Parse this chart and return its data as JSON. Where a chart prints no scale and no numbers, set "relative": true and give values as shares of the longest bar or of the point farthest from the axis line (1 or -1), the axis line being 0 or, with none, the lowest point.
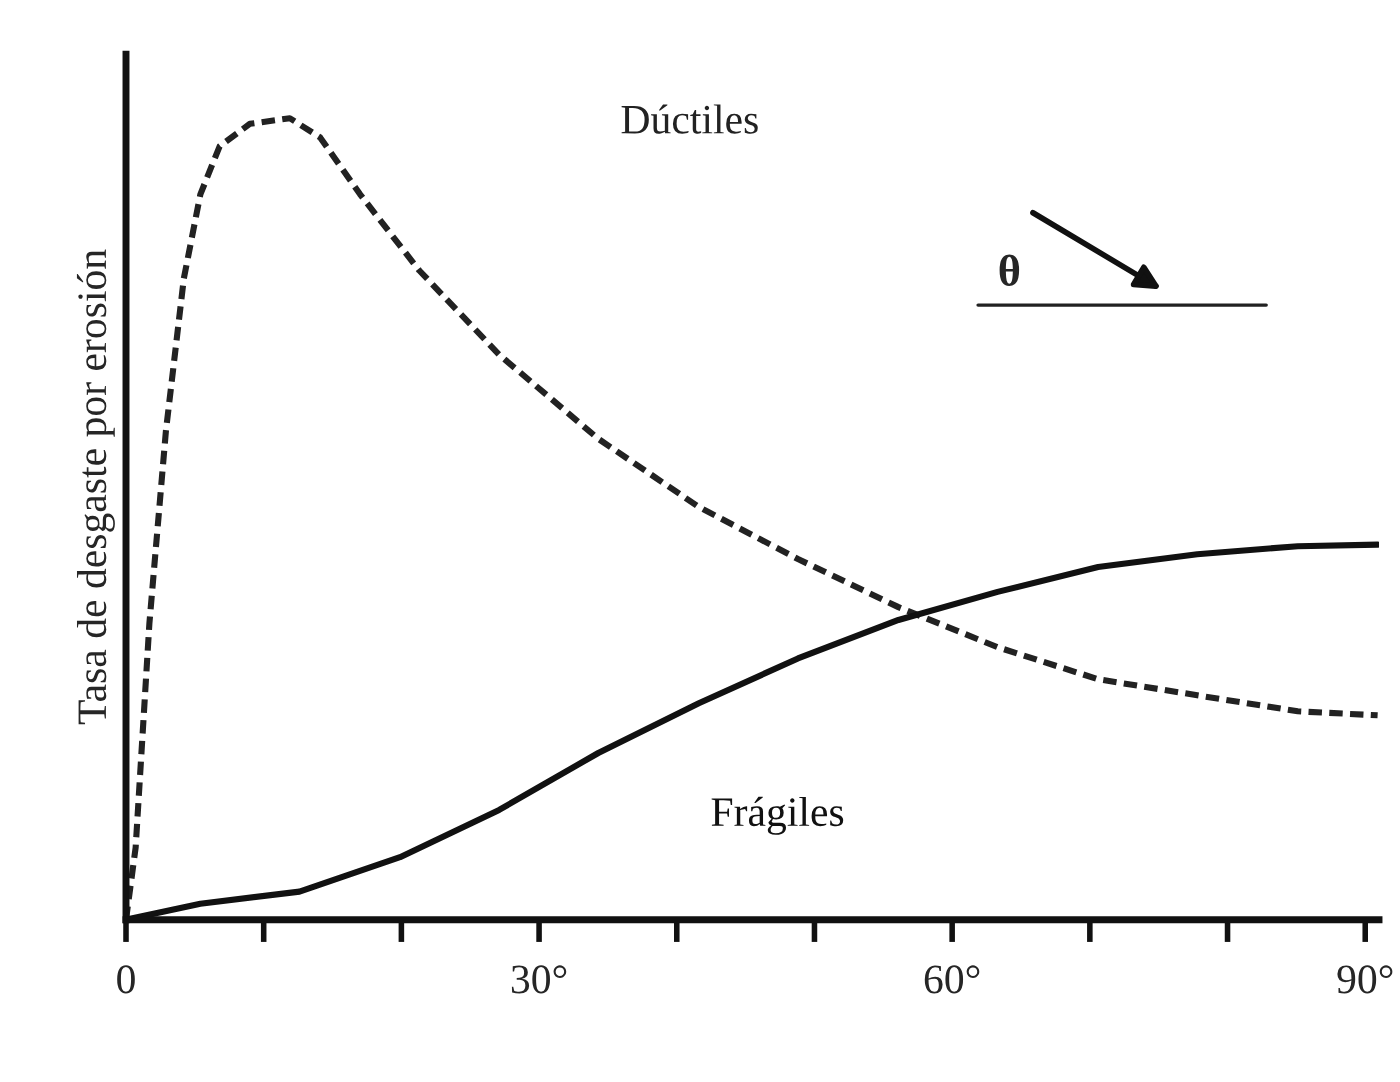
{
  "chart_data": {
    "type": "line",
    "relative": true,
    "ylabel": "Tasa de desgaste por erosión",
    "xlim": [
      0,
      91
    ],
    "xticks": [
      {
        "value": 0,
        "label": "0"
      },
      {
        "value": 10,
        "label": null
      },
      {
        "value": 20,
        "label": null
      },
      {
        "value": 30,
        "label": "30°"
      },
      {
        "value": 40,
        "label": null
      },
      {
        "value": 50,
        "label": null
      },
      {
        "value": 60,
        "label": "60°"
      },
      {
        "value": 70,
        "label": null
      },
      {
        "value": 80,
        "label": null
      },
      {
        "value": 90,
        "label": "90°"
      }
    ],
    "series": [
      {
        "name": "Dúctiles",
        "color": "#222222",
        "line_style": "dotted",
        "x": [
          0,
          0.7,
          1.7,
          2.9,
          4.2,
          5.4,
          6.8,
          9.0,
          11.9,
          14.1,
          17.0,
          21.3,
          27.1,
          34.3,
          41.6,
          48.8,
          56.1,
          63.3,
          70.6,
          77.8,
          85.1,
          90.9
        ],
        "values": [
          0,
          0.09,
          0.37,
          0.61,
          0.8,
          0.905,
          0.965,
          0.993,
          1.0,
          0.976,
          0.905,
          0.81,
          0.705,
          0.6,
          0.515,
          0.45,
          0.39,
          0.34,
          0.3,
          0.28,
          0.26,
          0.255
        ]
      },
      {
        "name": "Frágiles",
        "color": "#111111",
        "line_style": "solid",
        "x": [
          0,
          5.4,
          12.6,
          19.9,
          27.1,
          34.3,
          41.6,
          48.8,
          56.1,
          63.3,
          70.6,
          77.8,
          85.1,
          90.9
        ],
        "values": [
          0,
          0.02,
          0.035,
          0.078,
          0.137,
          0.208,
          0.27,
          0.326,
          0.374,
          0.409,
          0.44,
          0.456,
          0.466,
          0.468
        ]
      }
    ],
    "annotations": [
      "θ"
    ],
    "legend": false,
    "grid": false
  }
}
